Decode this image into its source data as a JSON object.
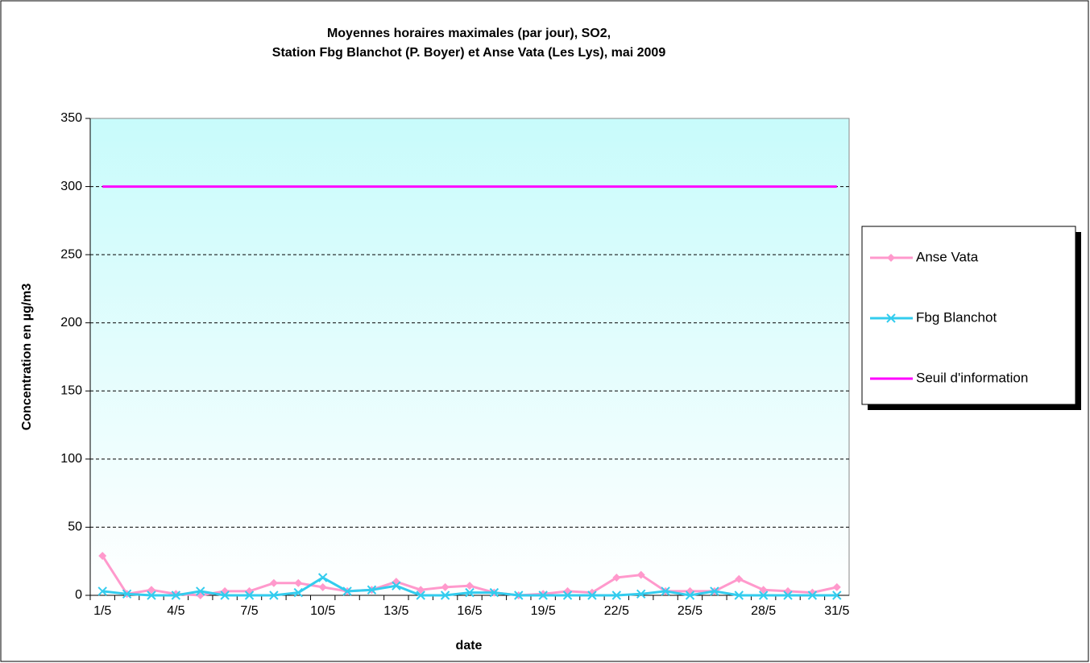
{
  "chart_data": {
    "type": "line",
    "title": [
      "Moyennes horaires maximales (par jour), SO2,",
      "Station Fbg Blanchot (P. Boyer) et Anse Vata (Les Lys), mai 2009"
    ],
    "xlabel": "date",
    "ylabel": "Concentration en µg/m3",
    "categories": [
      "1/5",
      null,
      null,
      "4/5",
      null,
      null,
      "7/5",
      null,
      null,
      "10/5",
      null,
      null,
      "13/5",
      null,
      null,
      "16/5",
      null,
      null,
      "19/5",
      null,
      null,
      "22/5",
      null,
      null,
      "25/5",
      null,
      null,
      "28/5",
      null,
      null,
      "31/5"
    ],
    "series": [
      {
        "name": "Anse Vata",
        "color": "#ff99cc",
        "marker": "diamond",
        "values": [
          29,
          1,
          4,
          1,
          0,
          3,
          3,
          9,
          9,
          6,
          3,
          4,
          10,
          4,
          6,
          7,
          2,
          0,
          1,
          3,
          2,
          13,
          15,
          3,
          3,
          3,
          12,
          4,
          3,
          2,
          6
        ]
      },
      {
        "name": "Fbg Blanchot",
        "color": "#33ccee",
        "marker": "x",
        "values": [
          3,
          1,
          0,
          0,
          3,
          0,
          0,
          0,
          2,
          13,
          3,
          4,
          7,
          0,
          0,
          2,
          2,
          0,
          0,
          0,
          0,
          0,
          1,
          3,
          0,
          3,
          0,
          0,
          0,
          0,
          0
        ]
      },
      {
        "name": "Seuil d'information",
        "color": "#ff00ff",
        "marker": "none",
        "values": [
          300,
          300,
          300,
          300,
          300,
          300,
          300,
          300,
          300,
          300,
          300,
          300,
          300,
          300,
          300,
          300,
          300,
          300,
          300,
          300,
          300,
          300,
          300,
          300,
          300,
          300,
          300,
          300,
          300,
          300,
          300
        ]
      }
    ],
    "ylim": [
      0,
      350
    ],
    "yticks": [
      0,
      50,
      100,
      150,
      200,
      250,
      300,
      350
    ],
    "grid": true,
    "legend": "right"
  }
}
